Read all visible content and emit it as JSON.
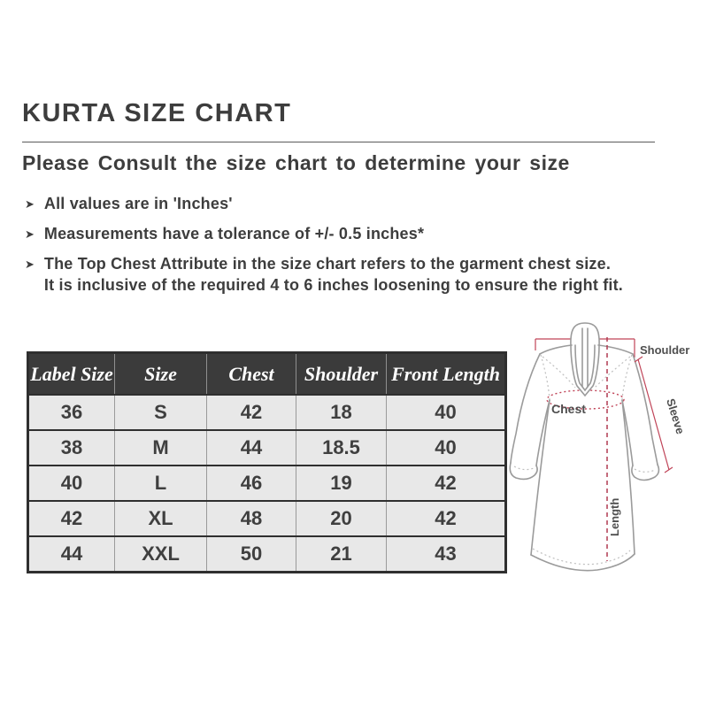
{
  "header": {
    "title": "KURTA SIZE CHART",
    "subtitle": "Please Consult the size chart to determine your size"
  },
  "notes": {
    "bullet_icon": "arrow-right",
    "items": [
      "All values are in 'Inches'",
      "Measurements have a tolerance of +/- 0.5 inches*",
      "The Top Chest Attribute in the size chart refers to the garment chest size.\nIt is inclusive of the required 4 to 6 inches loosening to ensure the right fit."
    ]
  },
  "chart_data": {
    "type": "table",
    "title": "Kurta size chart",
    "units": "Inches",
    "columns": [
      "Label Size",
      "Size",
      "Chest",
      "Shoulder",
      "Front Length"
    ],
    "rows": [
      [
        "36",
        "S",
        "42",
        "18",
        "40"
      ],
      [
        "38",
        "M",
        "44",
        "18.5",
        "40"
      ],
      [
        "40",
        "L",
        "46",
        "19",
        "42"
      ],
      [
        "42",
        "XL",
        "48",
        "20",
        "42"
      ],
      [
        "44",
        "XXL",
        "50",
        "21",
        "43"
      ]
    ]
  },
  "diagram": {
    "labels": {
      "shoulder": "Shoulder",
      "sleeve": "Sleeve",
      "chest": "Chest",
      "length": "Length"
    },
    "colors": {
      "measure_line": "#c04458",
      "length_line": "#b03a50",
      "garment_outline": "#9b9b9b",
      "label_text": "#4f4f4f"
    }
  },
  "colors": {
    "text": "#3d3d3d",
    "table_header_bg": "#3b3b3b",
    "table_header_text": "#ffffff",
    "table_row_bg": "#e8e8e8"
  }
}
